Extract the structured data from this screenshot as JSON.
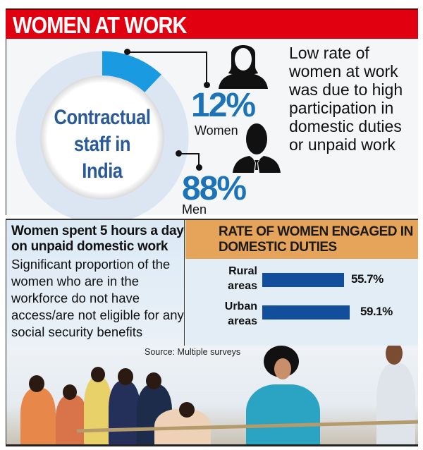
{
  "header": {
    "title": "WOMEN AT WORK",
    "color": "#e0000f"
  },
  "donut": {
    "center_label": [
      "Contractual",
      "staff in",
      "India"
    ],
    "women_pct": 12,
    "men_pct": 88,
    "women_color": "#1a9ae0",
    "men_color": "#dce6f3"
  },
  "stats": {
    "women": {
      "value": "12%",
      "label": "Women",
      "icon": "woman-silhouette-icon"
    },
    "men": {
      "value": "88%",
      "label": "Men",
      "icon": "man-silhouette-icon"
    }
  },
  "note": "Low rate of women at work was due to high participation in domestic duties or unpaid work",
  "left_panel": {
    "title": "Women spent 5 hours a day on unpaid domestic work",
    "body": "Significant proportion of the women who are in the workforce do not have access/are not eligible for any social security benefits"
  },
  "right_panel": {
    "title": "RATE OF WOMEN ENGAGED IN DOMESTIC DUTIES",
    "header_color": "#e6a35a",
    "bar_color": "#114f9c"
  },
  "chart_data": [
    {
      "type": "pie",
      "title": "Contractual staff in India",
      "categories": [
        "Women",
        "Men"
      ],
      "values": [
        12,
        88
      ],
      "unit": "%",
      "style": "donut"
    },
    {
      "type": "bar",
      "orientation": "horizontal",
      "title": "RATE OF WOMEN ENGAGED IN DOMESTIC DUTIES",
      "categories": [
        "Rural areas",
        "Urban areas"
      ],
      "values": [
        55.7,
        59.1
      ],
      "value_labels": [
        "55.7%",
        "59.1%"
      ],
      "unit": "%",
      "grid": false,
      "legend": false
    }
  ],
  "source": "Source: Multiple surveys",
  "photo": {
    "description": "Women pulling a rope in a tug-of-war"
  }
}
